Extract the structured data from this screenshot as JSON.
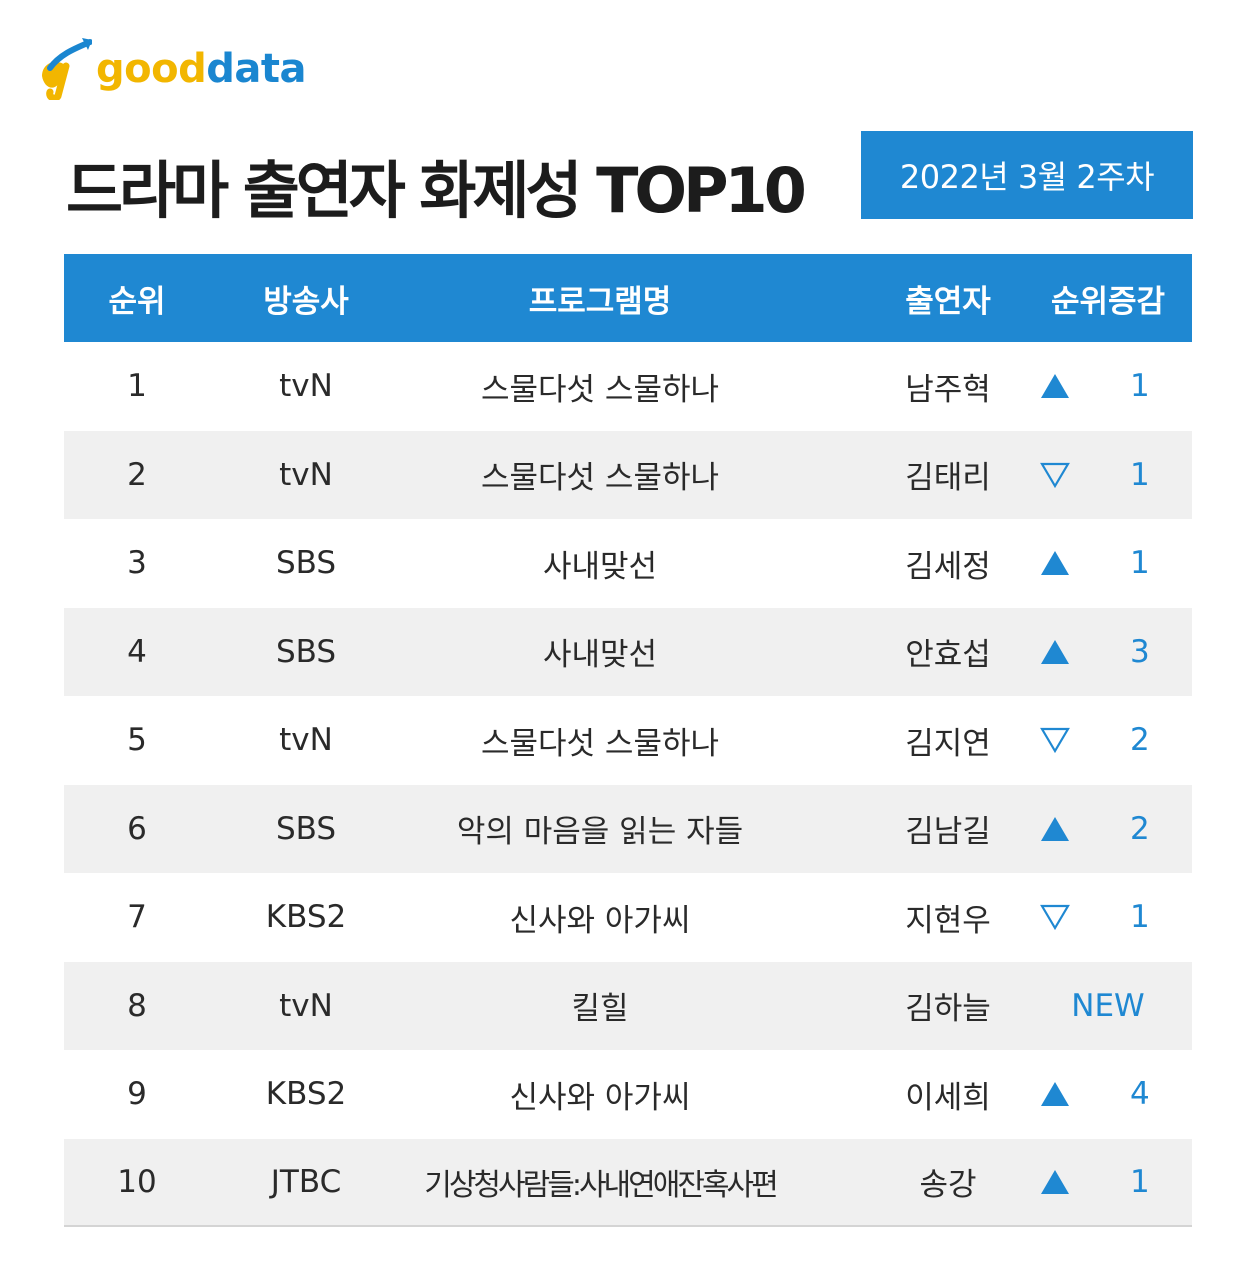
{
  "logo": {
    "part1": "good",
    "part2": "data"
  },
  "title": "드라마 출연자 화제성 TOP10",
  "date_badge": "2022년 3월 2주차",
  "colors": {
    "accent": "#1f88d2",
    "logo_yellow": "#f2b600",
    "row_alt": "#f0f0f0"
  },
  "table": {
    "headers": {
      "rank": "순위",
      "broadcaster": "방송사",
      "program": "프로그램명",
      "cast": "출연자",
      "change": "순위증감"
    },
    "rows": [
      {
        "rank": "1",
        "broadcaster": "tvN",
        "program": "스물다섯 스물하나",
        "cast": "남주혁",
        "direction": "up",
        "change": "1"
      },
      {
        "rank": "2",
        "broadcaster": "tvN",
        "program": "스물다섯 스물하나",
        "cast": "김태리",
        "direction": "down",
        "change": "1"
      },
      {
        "rank": "3",
        "broadcaster": "SBS",
        "program": "사내맞선",
        "cast": "김세정",
        "direction": "up",
        "change": "1"
      },
      {
        "rank": "4",
        "broadcaster": "SBS",
        "program": "사내맞선",
        "cast": "안효섭",
        "direction": "up",
        "change": "3"
      },
      {
        "rank": "5",
        "broadcaster": "tvN",
        "program": "스물다섯 스물하나",
        "cast": "김지연",
        "direction": "down",
        "change": "2"
      },
      {
        "rank": "6",
        "broadcaster": "SBS",
        "program": "악의 마음을 읽는 자들",
        "cast": "김남길",
        "direction": "up",
        "change": "2"
      },
      {
        "rank": "7",
        "broadcaster": "KBS2",
        "program": "신사와 아가씨",
        "cast": "지현우",
        "direction": "down",
        "change": "1"
      },
      {
        "rank": "8",
        "broadcaster": "tvN",
        "program": "킬힐",
        "cast": "김하늘",
        "direction": "new",
        "change": "NEW"
      },
      {
        "rank": "9",
        "broadcaster": "KBS2",
        "program": "신사와 아가씨",
        "cast": "이세희",
        "direction": "up",
        "change": "4"
      },
      {
        "rank": "10",
        "broadcaster": "JTBC",
        "program": "기상청사람들:사내연애잔혹사편",
        "cast": "송강",
        "direction": "up",
        "change": "1"
      }
    ]
  }
}
